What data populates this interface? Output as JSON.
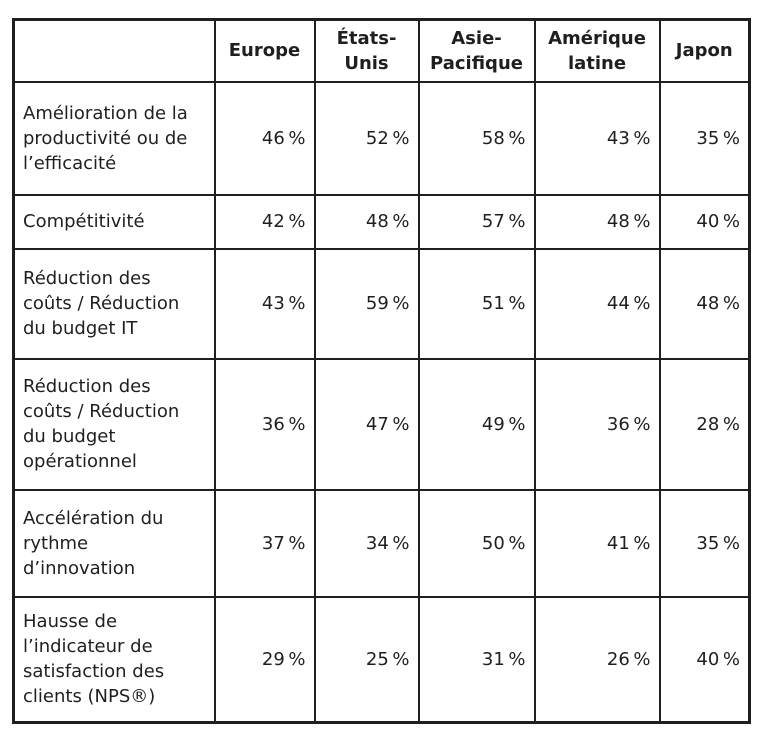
{
  "colors": {
    "border": "#1f1f1f",
    "text": "#1f1f1f",
    "background": "#ffffff"
  },
  "chart_data": {
    "type": "table",
    "title": "",
    "corner_label": "",
    "unit": "%",
    "columns": [
      "Europe",
      "États-Unis",
      "Asie-Pacifique",
      "Amérique latine",
      "Japon"
    ],
    "columns_display": [
      "Europe",
      "États-\nUnis",
      "Asie-\nPacifique",
      "Amérique\nlatine",
      "Japon"
    ],
    "rows": [
      {
        "label": "Amélioration de la productivité ou de l’efficacité",
        "label_display": "Amélioration de la\nproductivité ou de\nl’efficacité",
        "values": [
          46,
          52,
          58,
          43,
          35
        ],
        "cells": [
          "46 %",
          "52 %",
          "58 %",
          "43 %",
          "35 %"
        ]
      },
      {
        "label": "Compétitivité",
        "label_display": "Compétitivité",
        "values": [
          42,
          48,
          57,
          48,
          40
        ],
        "cells": [
          "42 %",
          "48 %",
          "57 %",
          "48 %",
          "40 %"
        ]
      },
      {
        "label": "Réduction des coûts / Réduction du budget IT",
        "label_display": "Réduction des\ncoûts / Réduction\ndu budget IT",
        "values": [
          43,
          59,
          51,
          44,
          48
        ],
        "cells": [
          "43 %",
          "59 %",
          "51 %",
          "44 %",
          "48 %"
        ]
      },
      {
        "label": "Réduction des coûts / Réduction du budget opérationnel",
        "label_display": "Réduction des\ncoûts / Réduction\ndu budget\nopérationnel",
        "values": [
          36,
          47,
          49,
          36,
          28
        ],
        "cells": [
          "36 %",
          "47 %",
          "49 %",
          "36 %",
          "28 %"
        ]
      },
      {
        "label": "Accélération du rythme d’innovation",
        "label_display": "Accélération du\nrythme\nd’innovation",
        "values": [
          37,
          34,
          50,
          41,
          35
        ],
        "cells": [
          "37 %",
          "34 %",
          "50 %",
          "41 %",
          "35 %"
        ]
      },
      {
        "label": "Hausse de l’indicateur de satisfaction des clients (NPS®)",
        "label_display": "Hausse de\nl’indicateur de\nsatisfaction des\nclients (NPS®)",
        "values": [
          29,
          25,
          31,
          26,
          40
        ],
        "cells": [
          "29 %",
          "25 %",
          "31 %",
          "26 %",
          "40 %"
        ]
      }
    ]
  }
}
